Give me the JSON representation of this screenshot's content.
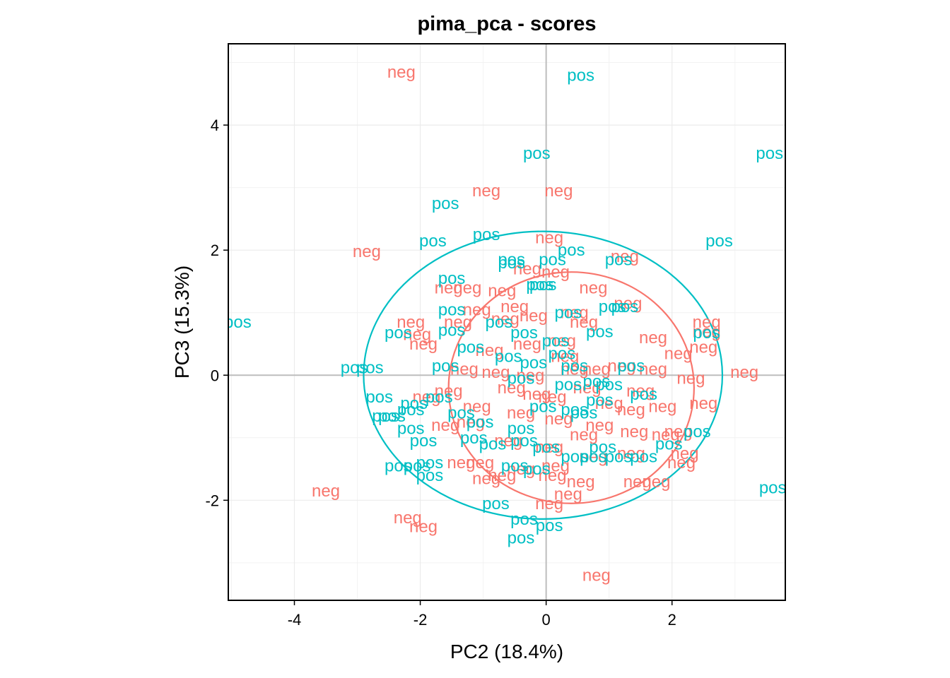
{
  "chart_data": {
    "type": "scatter",
    "title": "pima_pca - scores",
    "xlabel": "PC2 (18.4%)",
    "ylabel": "PC3 (15.3%)",
    "xlim": [
      -5.05,
      3.8
    ],
    "ylim": [
      -3.6,
      5.3
    ],
    "xticks": [
      -4,
      -2,
      0,
      2
    ],
    "xtick_labels": [
      "-4",
      "-2",
      "0",
      "2"
    ],
    "yticks": [
      -2,
      0,
      2,
      4
    ],
    "ytick_labels": [
      "-2",
      "0",
      "2",
      "4"
    ],
    "grid": true,
    "reference_lines": {
      "x": 0,
      "y": 0
    },
    "marker": "text labels",
    "series": [
      {
        "label_text": "neg",
        "color": "#F8766D",
        "ellipse": {
          "cx": 0.4,
          "cy": -0.2,
          "rx": 1.95,
          "ry": 1.85
        },
        "points": [
          [
            -2.3,
            4.85
          ],
          [
            -0.95,
            2.95
          ],
          [
            0.2,
            2.95
          ],
          [
            -2.85,
            1.98
          ],
          [
            0.05,
            2.2
          ],
          [
            1.25,
            1.9
          ],
          [
            -1.55,
            1.4
          ],
          [
            -1.25,
            1.4
          ],
          [
            -0.7,
            1.35
          ],
          [
            -0.3,
            1.7
          ],
          [
            0.15,
            1.65
          ],
          [
            0.75,
            1.4
          ],
          [
            -1.1,
            1.05
          ],
          [
            -0.5,
            1.1
          ],
          [
            0.45,
            1.0
          ],
          [
            1.3,
            1.15
          ],
          [
            2.55,
            0.85
          ],
          [
            2.55,
            0.7
          ],
          [
            -2.15,
            0.85
          ],
          [
            -2.05,
            0.65
          ],
          [
            -1.95,
            0.5
          ],
          [
            -1.4,
            0.85
          ],
          [
            -0.65,
            0.9
          ],
          [
            -0.2,
            0.95
          ],
          [
            0.6,
            0.85
          ],
          [
            1.7,
            0.6
          ],
          [
            2.1,
            0.35
          ],
          [
            2.5,
            0.45
          ],
          [
            3.15,
            0.05
          ],
          [
            2.3,
            -0.05
          ],
          [
            1.7,
            0.1
          ],
          [
            1.2,
            0.15
          ],
          [
            0.8,
            0.1
          ],
          [
            0.3,
            0.3
          ],
          [
            -0.3,
            0.5
          ],
          [
            -0.9,
            0.4
          ],
          [
            -1.3,
            0.1
          ],
          [
            -0.55,
            -0.2
          ],
          [
            0.1,
            -0.35
          ],
          [
            0.65,
            -0.2
          ],
          [
            1.5,
            -0.25
          ],
          [
            2.5,
            -0.45
          ],
          [
            1.85,
            -0.5
          ],
          [
            1.35,
            -0.55
          ],
          [
            0.85,
            -0.8
          ],
          [
            0.2,
            -0.7
          ],
          [
            -0.4,
            -0.6
          ],
          [
            -1.1,
            -0.5
          ],
          [
            -1.55,
            -0.25
          ],
          [
            -1.9,
            -0.35
          ],
          [
            -1.6,
            -0.8
          ],
          [
            -1.2,
            -0.75
          ],
          [
            -0.6,
            -1.05
          ],
          [
            0.05,
            -1.15
          ],
          [
            0.6,
            -0.95
          ],
          [
            1.4,
            -0.9
          ],
          [
            1.9,
            -0.95
          ],
          [
            2.1,
            -0.9
          ],
          [
            2.2,
            -1.25
          ],
          [
            1.35,
            -1.25
          ],
          [
            0.75,
            -1.3
          ],
          [
            0.15,
            -1.45
          ],
          [
            -0.4,
            -1.5
          ],
          [
            -1.05,
            -1.4
          ],
          [
            -1.35,
            -1.4
          ],
          [
            -0.95,
            -1.65
          ],
          [
            -0.7,
            -1.6
          ],
          [
            0.1,
            -1.6
          ],
          [
            0.55,
            -1.7
          ],
          [
            1.45,
            -1.7
          ],
          [
            1.75,
            -1.7
          ],
          [
            2.15,
            -1.4
          ],
          [
            0.35,
            -1.9
          ],
          [
            0.05,
            -2.05
          ],
          [
            -3.5,
            -1.85
          ],
          [
            -2.2,
            -2.28
          ],
          [
            -1.95,
            -2.42
          ],
          [
            0.8,
            -3.2
          ],
          [
            -0.25,
            0.0
          ],
          [
            0.45,
            0.1
          ],
          [
            -0.15,
            -0.3
          ],
          [
            1.0,
            -0.45
          ],
          [
            -0.8,
            0.05
          ],
          [
            0.25,
            0.55
          ]
        ]
      },
      {
        "label_text": "pos",
        "color": "#00BFC4",
        "ellipse": {
          "cx": -0.05,
          "cy": 0.0,
          "rx": 2.85,
          "ry": 2.3
        },
        "points": [
          [
            0.55,
            4.8
          ],
          [
            -0.15,
            3.55
          ],
          [
            3.55,
            3.55
          ],
          [
            -1.6,
            2.75
          ],
          [
            -1.8,
            2.15
          ],
          [
            -0.95,
            2.25
          ],
          [
            2.75,
            2.15
          ],
          [
            -0.55,
            1.85
          ],
          [
            -0.55,
            1.8
          ],
          [
            0.1,
            1.85
          ],
          [
            0.4,
            2.0
          ],
          [
            1.15,
            1.85
          ],
          [
            -1.5,
            1.55
          ],
          [
            -0.05,
            1.45
          ],
          [
            -0.1,
            1.45
          ],
          [
            1.05,
            1.1
          ],
          [
            1.25,
            1.1
          ],
          [
            0.35,
            1.0
          ],
          [
            -1.5,
            1.05
          ],
          [
            -0.75,
            0.85
          ],
          [
            -4.9,
            0.85
          ],
          [
            -2.35,
            0.68
          ],
          [
            -1.5,
            0.72
          ],
          [
            -0.35,
            0.68
          ],
          [
            0.15,
            0.55
          ],
          [
            2.55,
            0.68
          ],
          [
            0.85,
            0.7
          ],
          [
            -3.05,
            0.12
          ],
          [
            -2.8,
            0.12
          ],
          [
            -1.6,
            0.15
          ],
          [
            -1.2,
            0.45
          ],
          [
            -0.2,
            0.2
          ],
          [
            0.45,
            0.15
          ],
          [
            1.35,
            0.15
          ],
          [
            -0.4,
            -0.05
          ],
          [
            0.35,
            -0.15
          ],
          [
            0.8,
            -0.1
          ],
          [
            1.0,
            -0.15
          ],
          [
            1.55,
            -0.3
          ],
          [
            -2.65,
            -0.35
          ],
          [
            -2.1,
            -0.45
          ],
          [
            -1.7,
            -0.35
          ],
          [
            -1.35,
            -0.6
          ],
          [
            -2.15,
            -0.55
          ],
          [
            -2.45,
            -0.65
          ],
          [
            -2.55,
            -0.65
          ],
          [
            -2.15,
            -0.85
          ],
          [
            -1.05,
            -0.75
          ],
          [
            -0.4,
            -0.85
          ],
          [
            0.45,
            -0.55
          ],
          [
            0.85,
            -0.4
          ],
          [
            -1.95,
            -1.05
          ],
          [
            -1.15,
            -1.0
          ],
          [
            -0.85,
            -1.1
          ],
          [
            -0.35,
            -1.05
          ],
          [
            0.0,
            -1.15
          ],
          [
            0.9,
            -1.15
          ],
          [
            1.15,
            -1.3
          ],
          [
            1.55,
            -1.3
          ],
          [
            1.95,
            -1.1
          ],
          [
            2.4,
            -0.9
          ],
          [
            -2.35,
            -1.45
          ],
          [
            -2.05,
            -1.45
          ],
          [
            -1.85,
            -1.4
          ],
          [
            -1.85,
            -1.6
          ],
          [
            -0.5,
            -1.45
          ],
          [
            -0.15,
            -1.5
          ],
          [
            0.45,
            -1.3
          ],
          [
            0.75,
            -1.3
          ],
          [
            3.6,
            -1.8
          ],
          [
            -0.8,
            -2.05
          ],
          [
            -0.35,
            -2.3
          ],
          [
            0.05,
            -2.4
          ],
          [
            -0.4,
            -2.6
          ],
          [
            -0.05,
            -0.5
          ],
          [
            0.25,
            0.35
          ],
          [
            -0.6,
            0.3
          ],
          [
            0.6,
            -0.6
          ]
        ]
      }
    ]
  }
}
